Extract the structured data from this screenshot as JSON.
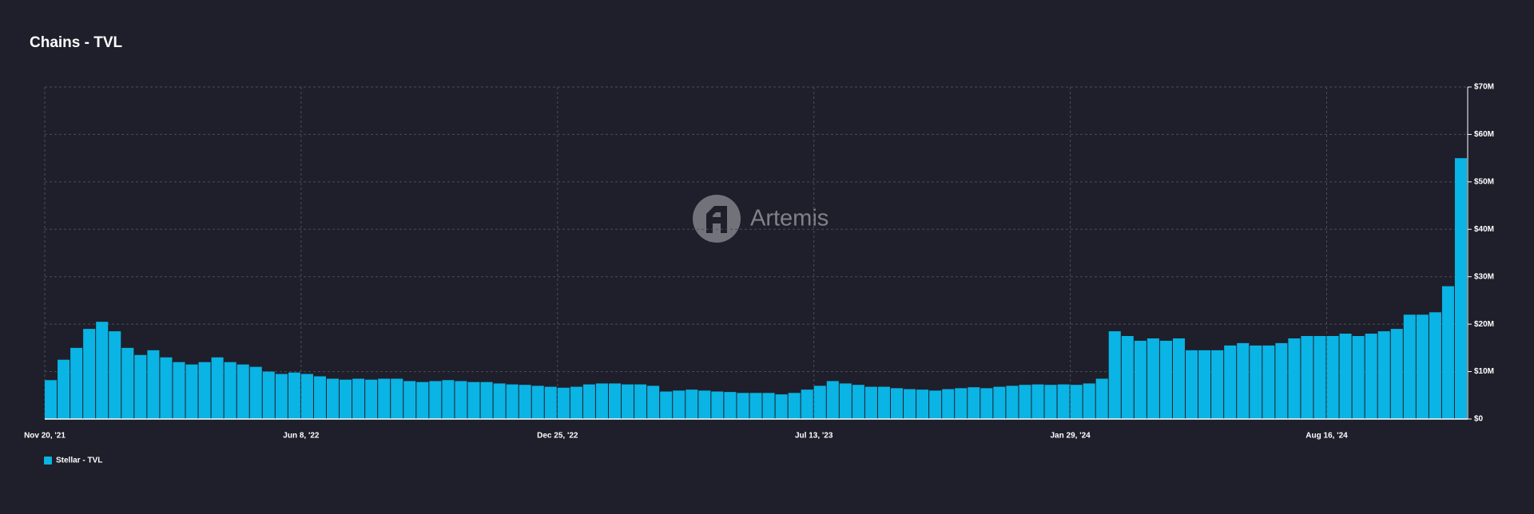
{
  "chart_data": {
    "type": "bar",
    "title": "Chains - TVL",
    "watermark": "Artemis",
    "categories": [
      "Nov 20, '21",
      null,
      null,
      null,
      null,
      null,
      null,
      null,
      null,
      null,
      null,
      null,
      null,
      null,
      null,
      null,
      null,
      null,
      null,
      null,
      "Jun 8, '22",
      null,
      null,
      null,
      null,
      null,
      null,
      null,
      null,
      null,
      null,
      null,
      null,
      null,
      null,
      null,
      null,
      null,
      null,
      null,
      "Dec 25, '22",
      null,
      null,
      null,
      null,
      null,
      null,
      null,
      null,
      null,
      null,
      null,
      null,
      null,
      null,
      null,
      null,
      null,
      null,
      null,
      "Jul 13, '23",
      null,
      null,
      null,
      null,
      null,
      null,
      null,
      null,
      null,
      null,
      null,
      null,
      null,
      null,
      null,
      null,
      null,
      null,
      null,
      "Jan 29, '24",
      null,
      null,
      null,
      null,
      null,
      null,
      null,
      null,
      null,
      null,
      null,
      null,
      null,
      null,
      null,
      null,
      null,
      null,
      null,
      "Aug 16, '24",
      null,
      null,
      null,
      null,
      null,
      null,
      null,
      null,
      null,
      null
    ],
    "series": [
      {
        "name": "Stellar - TVL",
        "color": "#0ab4e4",
        "values": [
          8200000,
          12500000,
          15000000,
          19000000,
          20500000,
          18500000,
          15000000,
          13500000,
          14500000,
          13000000,
          12000000,
          11500000,
          12000000,
          13000000,
          12000000,
          11500000,
          11000000,
          10000000,
          9500000,
          9800000,
          9500000,
          9000000,
          8500000,
          8300000,
          8500000,
          8300000,
          8500000,
          8500000,
          8000000,
          7800000,
          8000000,
          8200000,
          8000000,
          7800000,
          7800000,
          7500000,
          7300000,
          7200000,
          7000000,
          6800000,
          6600000,
          6800000,
          7300000,
          7500000,
          7500000,
          7300000,
          7300000,
          7000000,
          5800000,
          6000000,
          6200000,
          6000000,
          5800000,
          5700000,
          5500000,
          5500000,
          5500000,
          5200000,
          5500000,
          6200000,
          7000000,
          8000000,
          7500000,
          7200000,
          6800000,
          6800000,
          6500000,
          6300000,
          6200000,
          6000000,
          6300000,
          6500000,
          6700000,
          6500000,
          6800000,
          7000000,
          7200000,
          7300000,
          7200000,
          7300000,
          7200000,
          7500000,
          8500000,
          18500000,
          17500000,
          16500000,
          17000000,
          16500000,
          17000000,
          14500000,
          14500000,
          14500000,
          15500000,
          16000000,
          15500000,
          15500000,
          16000000,
          17000000,
          17500000,
          17500000,
          17500000,
          18000000,
          17500000,
          18000000,
          18500000,
          19000000,
          22000000,
          22000000,
          22500000,
          28000000,
          55000000
        ]
      }
    ],
    "ylim": [
      0,
      70000000
    ],
    "yticks": [
      {
        "value": 0,
        "label": "$0"
      },
      {
        "value": 10000000,
        "label": "$10M"
      },
      {
        "value": 20000000,
        "label": "$20M"
      },
      {
        "value": 30000000,
        "label": "$30M"
      },
      {
        "value": 40000000,
        "label": "$40M"
      },
      {
        "value": 50000000,
        "label": "$50M"
      },
      {
        "value": 60000000,
        "label": "$60M"
      },
      {
        "value": 70000000,
        "label": "$70M"
      }
    ],
    "grid": true,
    "legend": "bottom-left"
  }
}
